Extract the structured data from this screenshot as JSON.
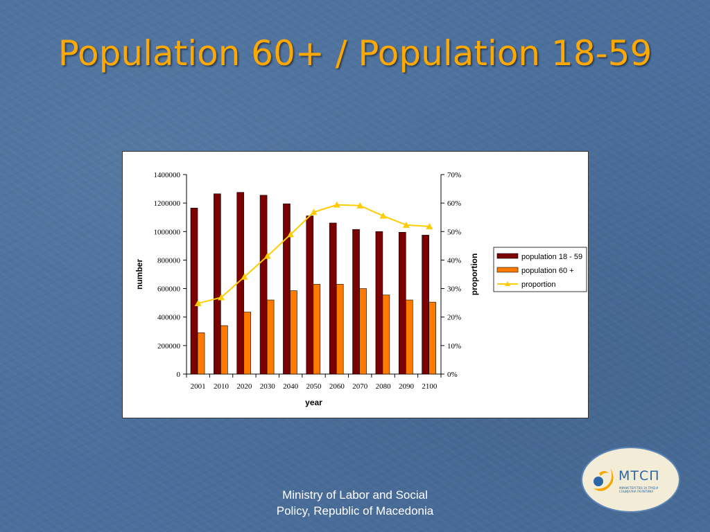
{
  "slide": {
    "title": "Population 60+ / Population 18-59",
    "footer_line1": "Ministry of Labor and Social",
    "footer_line2": "Policy, Republic of Macedonia"
  },
  "logo": {
    "text": "МТСП",
    "subtext": "МИНИСТЕРСТВО ЗА ТРУД И СОЦИЈАЛНА ПОЛИТИКА",
    "icon": "ministry-emblem-icon"
  },
  "colors": {
    "title": "#ffa800",
    "series_18_59": "#7b0000",
    "series_60": "#ff7a00",
    "proportion": "#ffcc00"
  },
  "chart_data": {
    "type": "bar",
    "title": "",
    "xlabel": "year",
    "ylabel": "number",
    "y2label": "proportion",
    "categories": [
      "2001",
      "2010",
      "2020",
      "2030",
      "2040",
      "2050",
      "2060",
      "2070",
      "2080",
      "2090",
      "2100"
    ],
    "ylim": [
      0,
      1400000
    ],
    "yticks": [
      "0",
      "200000",
      "400000",
      "600000",
      "800000",
      "1000000",
      "1200000",
      "1400000"
    ],
    "y2lim": [
      0,
      70
    ],
    "y2ticks": [
      "0%",
      "10%",
      "20%",
      "30%",
      "40%",
      "50%",
      "60%",
      "70%"
    ],
    "legend_position": "right",
    "grid": false,
    "series": [
      {
        "name": "population 18 - 59",
        "type": "bar",
        "axis": "left",
        "values": [
          1165000,
          1265000,
          1275000,
          1255000,
          1195000,
          1110000,
          1060000,
          1015000,
          1000000,
          995000,
          975000
        ]
      },
      {
        "name": "population 60 +",
        "type": "bar",
        "axis": "left",
        "values": [
          290000,
          340000,
          435000,
          520000,
          585000,
          630000,
          630000,
          600000,
          555000,
          520000,
          505000
        ]
      },
      {
        "name": "proportion",
        "type": "line",
        "axis": "right",
        "values": [
          24.8,
          26.9,
          34.1,
          41.4,
          49.0,
          56.8,
          59.4,
          59.1,
          55.5,
          52.3,
          51.8
        ]
      }
    ]
  }
}
